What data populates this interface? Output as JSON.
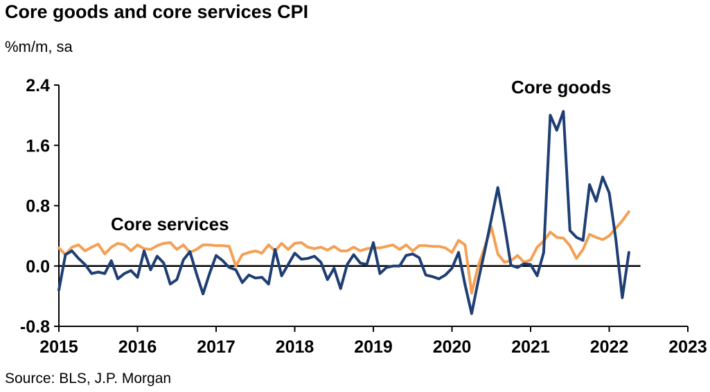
{
  "title": "Core goods and core services CPI",
  "subtitle": "%m/m, sa",
  "source": "Source: BLS, J.P. Morgan",
  "colors": {
    "core_goods": "#1F3E73",
    "core_services": "#F4A054",
    "axis": "#000000"
  },
  "chart_data": {
    "type": "line",
    "title": "Core goods and core services CPI",
    "ylabel": "%m/m, sa",
    "xlabel": "",
    "ylim": [
      -0.8,
      2.4
    ],
    "xlim": [
      2015,
      2023
    ],
    "yticks": [
      "2.4",
      "1.6",
      "0.8",
      "0.0",
      "-0.8"
    ],
    "xticks": [
      "2015",
      "2016",
      "2017",
      "2018",
      "2019",
      "2020",
      "2021",
      "2022",
      "2023"
    ],
    "annotations": [
      "Core goods",
      "Core services"
    ],
    "grid": false,
    "series": [
      {
        "name": "Core goods",
        "x_start": "2015-01",
        "values": [
          -0.32,
          0.15,
          0.2,
          0.1,
          0.02,
          -0.1,
          -0.08,
          -0.1,
          0.07,
          -0.17,
          -0.1,
          -0.06,
          -0.15,
          0.2,
          -0.05,
          0.13,
          0.04,
          -0.24,
          -0.18,
          0.08,
          0.19,
          -0.1,
          -0.37,
          -0.1,
          0.14,
          0.07,
          -0.02,
          -0.05,
          -0.22,
          -0.12,
          -0.16,
          -0.15,
          -0.24,
          0.22,
          -0.13,
          0.02,
          0.17,
          0.09,
          0.1,
          0.13,
          0.05,
          -0.18,
          -0.03,
          -0.3,
          0.02,
          0.15,
          0.04,
          0.02,
          0.31,
          -0.1,
          -0.02,
          0.0,
          0.0,
          0.14,
          0.16,
          0.11,
          -0.12,
          -0.14,
          -0.17,
          -0.12,
          -0.03,
          0.18,
          -0.25,
          -0.63,
          -0.2,
          0.2,
          0.62,
          1.04,
          0.55,
          0.01,
          -0.02,
          0.03,
          0.02,
          -0.13,
          0.18,
          2.0,
          1.8,
          2.05,
          0.47,
          0.38,
          0.34,
          1.08,
          0.86,
          1.18,
          0.97,
          0.36,
          -0.42,
          0.18
        ]
      },
      {
        "name": "Core services",
        "x_start": "2015-01",
        "values": [
          0.24,
          0.15,
          0.25,
          0.28,
          0.2,
          0.25,
          0.29,
          0.16,
          0.25,
          0.3,
          0.28,
          0.2,
          0.28,
          0.23,
          0.22,
          0.27,
          0.3,
          0.31,
          0.22,
          0.28,
          0.18,
          0.22,
          0.28,
          0.28,
          0.27,
          0.27,
          0.26,
          0.0,
          0.15,
          0.18,
          0.2,
          0.17,
          0.28,
          0.2,
          0.3,
          0.22,
          0.3,
          0.31,
          0.25,
          0.23,
          0.25,
          0.21,
          0.26,
          0.2,
          0.2,
          0.25,
          0.2,
          0.23,
          0.24,
          0.24,
          0.26,
          0.28,
          0.22,
          0.28,
          0.2,
          0.27,
          0.27,
          0.26,
          0.26,
          0.24,
          0.18,
          0.34,
          0.28,
          -0.36,
          0.0,
          0.25,
          0.52,
          0.16,
          0.05,
          0.07,
          0.14,
          0.05,
          0.08,
          0.25,
          0.33,
          0.45,
          0.38,
          0.37,
          0.27,
          0.1,
          0.22,
          0.42,
          0.38,
          0.35,
          0.4,
          0.5,
          0.6,
          0.72
        ]
      }
    ]
  }
}
